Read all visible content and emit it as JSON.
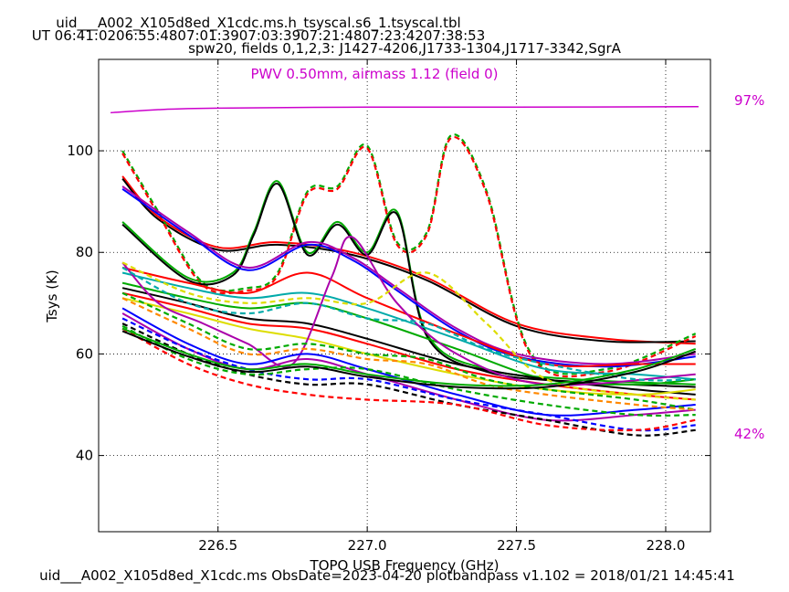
{
  "header": {
    "title_line1": "uid___A002_X105d8ed_X1cdc.ms.h_tsyscal.s6_1.tsyscal.tbl",
    "title_line2": "UT 06:41:0206:55:4807:01:3907:03:3907:21:4807:23:4207:38:53",
    "title_line3": "spw20,  fields 0,1,2,3: J1427-4206,J1733-1304,J1717-3342,SgrA"
  },
  "footer": {
    "text": "uid___A002_X105d8ed_X1cdc.ms  ObsDate=2023-04-20   plotbandpass v1.102 = 2018/01/21 14:45:41"
  },
  "colors": {
    "pwv": "#cc00cc",
    "palette": [
      "#000000",
      "#0000ff",
      "#ff0000",
      "#00aa00",
      "#00aaaa",
      "#aa00aa",
      "#dddd00",
      "#ff8800"
    ]
  },
  "chart_data": {
    "type": "line",
    "xlabel": "TOPO USB Frequency (GHz)",
    "ylabel": "Tsys (K)",
    "xlim": [
      226.1,
      228.15
    ],
    "ylim": [
      25,
      118
    ],
    "x_ticks": [
      226.5,
      227.0,
      227.5,
      228.0
    ],
    "x_tick_labels": [
      "226.5",
      "227.0",
      "227.5",
      "228.0"
    ],
    "y_ticks": [
      40,
      60,
      80,
      100
    ],
    "y_tick_labels": [
      "40",
      "60",
      "80",
      "100"
    ],
    "grid": true,
    "annotation": "PWV 0.50mm, airmass 1.12 (field 0)",
    "transmission": {
      "label_high": "97%",
      "label_low": "42%",
      "x": [
        226.14,
        226.3,
        226.5,
        227.0,
        227.5,
        228.11
      ],
      "y": [
        107.5,
        108.1,
        108.4,
        108.6,
        108.6,
        108.7
      ]
    },
    "series": [
      {
        "style": "solid",
        "color": "#ff0000",
        "x": [
          226.18,
          226.3,
          226.5,
          226.7,
          226.95,
          227.2,
          227.5,
          227.8,
          228.1
        ],
        "y": [
          95,
          87,
          81,
          82,
          80,
          75,
          66,
          63,
          62
        ]
      },
      {
        "style": "solid",
        "color": "#000000",
        "x": [
          226.18,
          226.3,
          226.5,
          226.7,
          226.95,
          227.2,
          227.5,
          227.8,
          228.1
        ],
        "y": [
          94.5,
          86.5,
          80.5,
          81.5,
          79.5,
          74.5,
          65.5,
          62.5,
          62.5
        ]
      },
      {
        "style": "dashed",
        "color": "#00aa00",
        "x": [
          226.18,
          226.3,
          226.45,
          226.6,
          226.7,
          226.8,
          226.9,
          227.0,
          227.1,
          227.2,
          227.28,
          227.4,
          227.55,
          227.8,
          228.1
        ],
        "y": [
          100,
          88,
          74,
          73,
          76,
          92,
          93,
          101,
          82,
          84,
          103,
          92,
          60,
          57,
          64
        ]
      },
      {
        "style": "dashed",
        "color": "#ff0000",
        "x": [
          226.18,
          226.3,
          226.45,
          226.6,
          226.7,
          226.8,
          226.9,
          227.0,
          227.1,
          227.2,
          227.28,
          227.4,
          227.55,
          227.8,
          228.1
        ],
        "y": [
          99.5,
          87.5,
          73.5,
          72.5,
          75.5,
          91.5,
          92.5,
          100.5,
          81.5,
          83.5,
          102.5,
          91.5,
          59.5,
          56.5,
          63.5
        ]
      },
      {
        "style": "solid",
        "color": "#00aa00",
        "x": [
          226.18,
          226.4,
          226.55,
          226.62,
          226.7,
          226.8,
          226.9,
          227.0,
          227.1,
          227.2,
          227.4,
          227.7,
          228.1
        ],
        "y": [
          86,
          75,
          76,
          84,
          94,
          80,
          86,
          80,
          88,
          64,
          57,
          55,
          54
        ]
      },
      {
        "style": "solid",
        "color": "#000000",
        "x": [
          226.18,
          226.4,
          226.55,
          226.62,
          226.7,
          226.8,
          226.9,
          227.0,
          227.1,
          227.2,
          227.4,
          227.7,
          228.1
        ],
        "y": [
          85.5,
          74.5,
          75.5,
          83.5,
          93.5,
          79.5,
          85.5,
          79.5,
          87.5,
          63.5,
          56.5,
          54.5,
          53.5
        ]
      },
      {
        "style": "solid",
        "color": "#aa00aa",
        "x": [
          226.18,
          226.4,
          226.6,
          226.8,
          226.95,
          227.1,
          227.3,
          227.5,
          227.8,
          228.1
        ],
        "y": [
          93,
          84,
          77,
          82,
          79,
          73,
          65,
          60,
          58,
          60
        ]
      },
      {
        "style": "solid",
        "color": "#0000ff",
        "x": [
          226.18,
          226.4,
          226.6,
          226.8,
          226.95,
          227.1,
          227.3,
          227.5,
          227.8,
          228.1
        ],
        "y": [
          92.5,
          83.5,
          76.5,
          81.5,
          78.5,
          72.5,
          64.5,
          59.5,
          57.5,
          59.5
        ]
      },
      {
        "style": "solid",
        "color": "#ff0000",
        "x": [
          226.18,
          226.4,
          226.6,
          226.8,
          227.0,
          227.3,
          227.6,
          227.9,
          228.1
        ],
        "y": [
          77,
          74,
          72,
          76,
          71,
          64,
          58,
          58,
          58
        ]
      },
      {
        "style": "solid",
        "color": "#00aaaa",
        "x": [
          226.18,
          226.4,
          226.6,
          226.8,
          227.0,
          227.3,
          227.6,
          227.9,
          228.1
        ],
        "y": [
          76,
          73,
          71,
          72,
          69,
          63,
          57,
          56,
          55
        ]
      },
      {
        "style": "solid",
        "color": "#00aa00",
        "x": [
          226.18,
          226.4,
          226.6,
          226.8,
          227.0,
          227.3,
          227.6,
          227.9,
          228.1
        ],
        "y": [
          74,
          71,
          69,
          70,
          67,
          61,
          55,
          54,
          55
        ]
      },
      {
        "style": "solid",
        "color": "#000000",
        "x": [
          226.18,
          226.4,
          226.6,
          226.8,
          227.0,
          227.3,
          227.6,
          227.9,
          228.1
        ],
        "y": [
          73,
          70,
          67,
          66,
          63,
          58,
          55,
          53,
          52
        ]
      },
      {
        "style": "solid",
        "color": "#ff0000",
        "x": [
          226.18,
          226.4,
          226.6,
          226.8,
          227.0,
          227.3,
          227.6,
          227.9,
          228.1
        ],
        "y": [
          72,
          69,
          66,
          65,
          62,
          57,
          54,
          52,
          51
        ]
      },
      {
        "style": "solid",
        "color": "#dddd00",
        "x": [
          226.18,
          226.4,
          226.6,
          226.8,
          227.0,
          227.3,
          227.6,
          227.9,
          228.1
        ],
        "y": [
          71,
          68,
          65,
          63,
          60,
          56,
          53,
          52,
          53
        ]
      },
      {
        "style": "solid",
        "color": "#aa00aa",
        "x": [
          226.18,
          226.3,
          226.45,
          226.6,
          226.75,
          226.88,
          226.95,
          227.1,
          227.3,
          227.6,
          228.1
        ],
        "y": [
          78,
          70,
          66,
          62,
          58,
          75,
          83,
          70,
          60,
          54,
          56
        ]
      },
      {
        "style": "solid",
        "color": "#0000ff",
        "x": [
          226.18,
          226.4,
          226.6,
          226.8,
          227.0,
          227.3,
          227.6,
          227.9,
          228.1
        ],
        "y": [
          69,
          62,
          58,
          60,
          57,
          52,
          48,
          49,
          50
        ]
      },
      {
        "style": "solid",
        "color": "#aa00aa",
        "x": [
          226.18,
          226.4,
          226.6,
          226.8,
          227.0,
          227.3,
          227.6,
          227.9,
          228.1
        ],
        "y": [
          68,
          61,
          57,
          59,
          56,
          51,
          47,
          48,
          49
        ]
      },
      {
        "style": "dashed",
        "color": "#0000ff",
        "x": [
          226.18,
          226.4,
          226.6,
          226.8,
          227.0,
          227.3,
          227.6,
          227.9,
          228.1
        ],
        "y": [
          67,
          61,
          57,
          55,
          55,
          51,
          48,
          45,
          46
        ]
      },
      {
        "style": "dashed",
        "color": "#000000",
        "x": [
          226.18,
          226.4,
          226.6,
          226.8,
          227.0,
          227.3,
          227.6,
          227.9,
          228.1
        ],
        "y": [
          66,
          60,
          56,
          54,
          54,
          50,
          47,
          44,
          45
        ]
      },
      {
        "style": "dashed",
        "color": "#ff0000",
        "x": [
          226.18,
          226.4,
          226.6,
          226.8,
          227.0,
          227.3,
          227.6,
          227.9,
          228.1
        ],
        "y": [
          65,
          58,
          54,
          52,
          51,
          50,
          46,
          45,
          47
        ]
      },
      {
        "style": "dashed",
        "color": "#00aa00",
        "x": [
          226.18,
          226.4,
          226.6,
          226.8,
          227.0,
          227.3,
          227.6,
          227.9,
          228.1
        ],
        "y": [
          65.5,
          59,
          56,
          57,
          57,
          53,
          50,
          48,
          48
        ]
      },
      {
        "style": "dashed",
        "color": "#dddd00",
        "x": [
          226.18,
          226.4,
          226.6,
          226.8,
          227.0,
          227.2,
          227.4,
          227.6,
          227.9,
          228.1
        ],
        "y": [
          78,
          72,
          70,
          71,
          70,
          76,
          66,
          55,
          52,
          51
        ]
      },
      {
        "style": "dashed",
        "color": "#00aaaa",
        "x": [
          226.18,
          226.4,
          226.6,
          226.8,
          227.0,
          227.2,
          227.4,
          227.6,
          227.9,
          228.1
        ],
        "y": [
          77,
          70,
          68,
          70,
          67,
          66,
          61,
          58,
          55,
          55
        ]
      },
      {
        "style": "dashed",
        "color": "#00aa00",
        "x": [
          226.18,
          226.4,
          226.6,
          226.8,
          227.0,
          227.2,
          227.4,
          227.6,
          227.9,
          228.1
        ],
        "y": [
          72,
          66,
          61,
          62,
          60,
          59,
          55,
          53,
          51,
          49
        ]
      },
      {
        "style": "dashed",
        "color": "#ff8800",
        "x": [
          226.18,
          226.4,
          226.6,
          226.8,
          227.0,
          227.2,
          227.4,
          227.6,
          227.9,
          228.1
        ],
        "y": [
          71,
          65,
          60,
          61,
          59,
          58,
          54,
          52,
          50,
          49
        ]
      },
      {
        "style": "solid",
        "color": "#00aa00",
        "x": [
          226.18,
          226.4,
          226.6,
          226.8,
          227.0,
          227.3,
          227.6,
          227.9,
          228.1
        ],
        "y": [
          65,
          60,
          57,
          58,
          56,
          54,
          54,
          57,
          61
        ]
      },
      {
        "style": "solid",
        "color": "#000000",
        "x": [
          226.18,
          226.4,
          226.6,
          226.8,
          227.0,
          227.3,
          227.6,
          227.9,
          228.1
        ],
        "y": [
          64.5,
          59.5,
          56.5,
          57.5,
          55.5,
          53.5,
          53.5,
          56.5,
          60.5
        ]
      }
    ]
  }
}
